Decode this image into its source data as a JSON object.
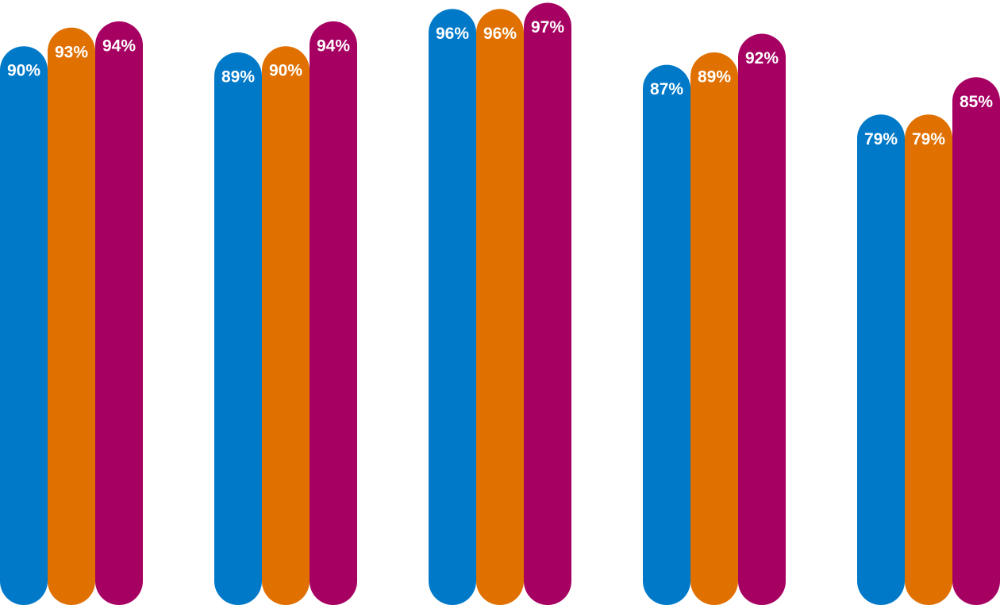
{
  "chart_data": {
    "type": "bar",
    "categories": [
      "",
      "",
      "",
      "",
      ""
    ],
    "series": [
      {
        "values": [
          90,
          89,
          96,
          87,
          79
        ],
        "labels": [
          "90%",
          "89%",
          "96%",
          "87%",
          "79%"
        ],
        "color": "#0079C8"
      },
      {
        "values": [
          93,
          90,
          96,
          89,
          79
        ],
        "labels": [
          "93%",
          "90%",
          "96%",
          "89%",
          "79%"
        ],
        "color": "#E07000"
      },
      {
        "values": [
          94,
          94,
          97,
          92,
          85
        ],
        "labels": [
          "94%",
          "94%",
          "97%",
          "92%",
          "85%"
        ],
        "color": "#A60062"
      }
    ],
    "title": "",
    "xlabel": "",
    "ylabel": "",
    "ylim": [
      0,
      100
    ],
    "grid": false,
    "legend": "none",
    "bar_style": "rounded-top"
  }
}
